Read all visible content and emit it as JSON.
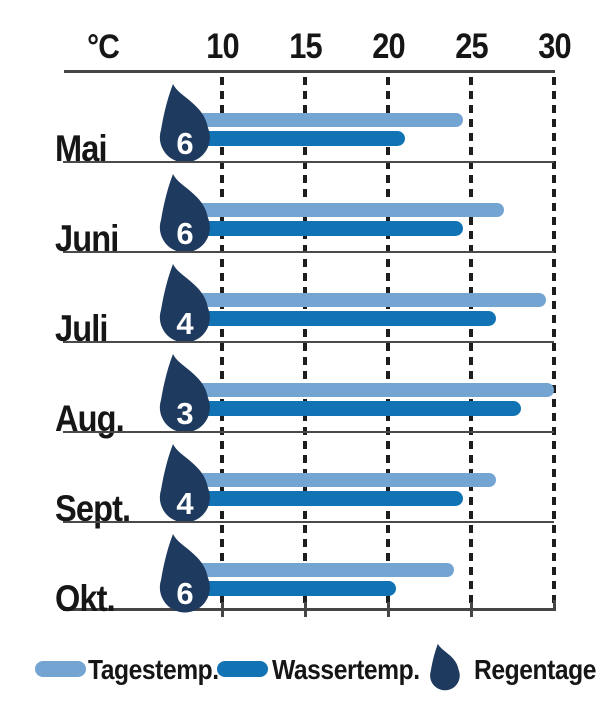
{
  "axis": {
    "unit_label": "°C",
    "tick_labels": [
      "10",
      "15",
      "20",
      "25",
      "30"
    ],
    "tick_values": [
      10,
      15,
      20,
      25,
      30
    ]
  },
  "chart_data": {
    "type": "bar",
    "orientation": "horizontal",
    "xlabel": "°C",
    "xlim": [
      10,
      30
    ],
    "x_ticks": [
      10,
      15,
      20,
      25,
      30
    ],
    "grid": "dashed-vertical",
    "legend_position": "bottom",
    "categories": [
      "Mai",
      "Juni",
      "Juli",
      "Aug.",
      "Sept.",
      "Okt."
    ],
    "series": [
      {
        "name": "Tagestemp.",
        "values": [
          24.5,
          27,
          29.5,
          30,
          26.5,
          24
        ]
      },
      {
        "name": "Wassertemp.",
        "values": [
          21,
          24.5,
          26.5,
          28,
          24.5,
          20.5
        ]
      },
      {
        "name": "Regentage",
        "values": [
          6,
          6,
          4,
          3,
          4,
          6
        ]
      }
    ]
  },
  "legend": {
    "tagestemp_label": "Tagestemp.",
    "wassertemp_label": "Wassertemp.",
    "regentage_label": "Regentage"
  },
  "colors": {
    "day_temp_bar": "#74a5d2",
    "water_temp_bar": "#1173b3",
    "raindrop": "#1e3a5e",
    "axis_line": "#454545",
    "gridline": "#1d1d1d",
    "text": "#161616"
  }
}
